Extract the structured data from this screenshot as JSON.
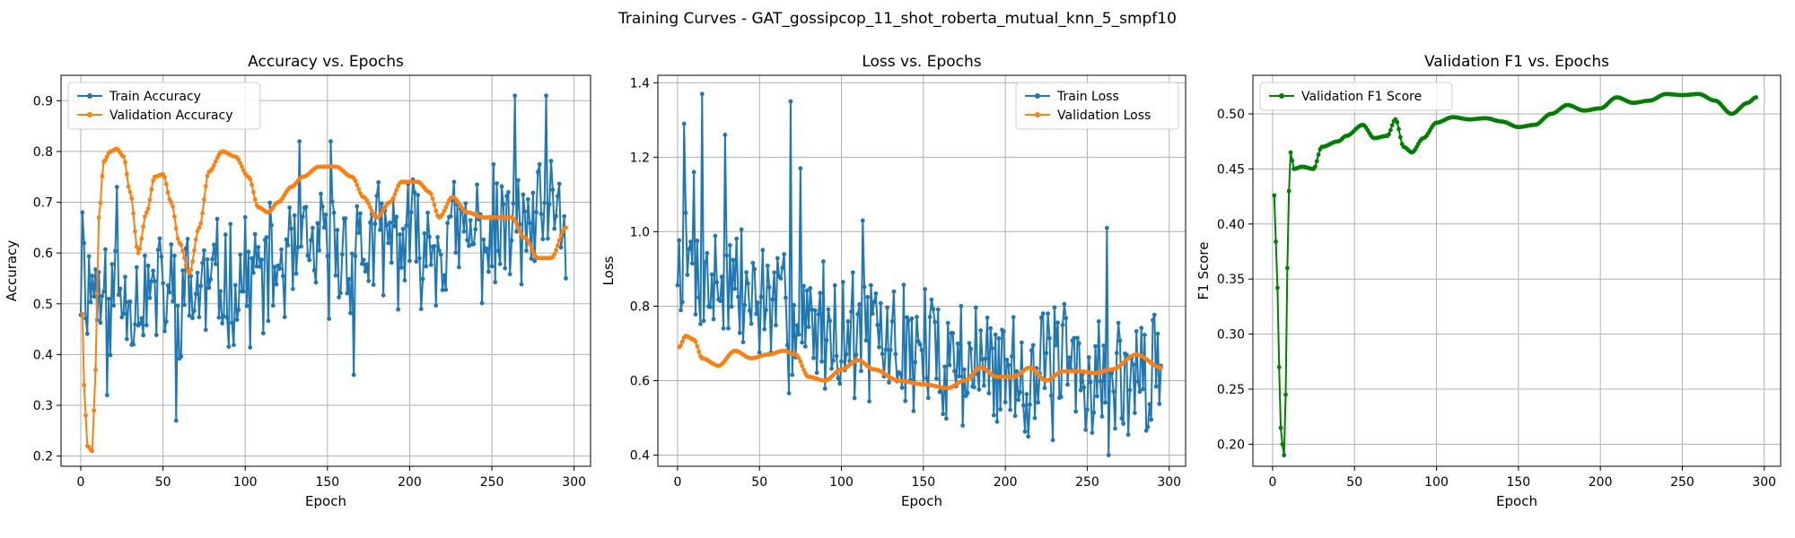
{
  "figure": {
    "suptitle": "Training Curves - GAT_gossipcop_11_shot_roberta_mutual_knn_5_smpf10"
  },
  "colors": {
    "blue": "#1f77b4",
    "orange": "#ff7f0e",
    "green": "#008000",
    "grid": "#b0b0b0"
  },
  "chart_data": [
    {
      "type": "line",
      "title": "Accuracy vs. Epochs",
      "xlabel": "Epoch",
      "ylabel": "Accuracy",
      "xlim": [
        -12,
        310
      ],
      "ylim": [
        0.18,
        0.95
      ],
      "xticks": [
        0,
        50,
        100,
        150,
        200,
        250,
        300
      ],
      "yticks": [
        0.2,
        0.3,
        0.4,
        0.5,
        0.6,
        0.7,
        0.8,
        0.9
      ],
      "grid": true,
      "legend": "upper left",
      "series": [
        {
          "name": "Train Accuracy",
          "color": "#1f77b4",
          "generator": "noise",
          "seed": 11,
          "length": 296,
          "anchors": [
            [
              0,
              0.55
            ],
            [
              20,
              0.52
            ],
            [
              60,
              0.52
            ],
            [
              100,
              0.55
            ],
            [
              150,
              0.6
            ],
            [
              200,
              0.62
            ],
            [
              295,
              0.65
            ]
          ],
          "amp": 0.11,
          "clip": [
            0.27,
            0.91
          ],
          "spikes": [
            [
              1,
              0.68
            ],
            [
              16,
              0.32
            ],
            [
              22,
              0.73
            ],
            [
              58,
              0.27
            ],
            [
              133,
              0.82
            ],
            [
              152,
              0.82
            ],
            [
              166,
              0.36
            ],
            [
              264,
              0.91
            ],
            [
              283,
              0.91
            ],
            [
              295,
              0.55
            ]
          ]
        },
        {
          "name": "Validation Accuracy",
          "color": "#ff7f0e",
          "generator": "smooth",
          "anchors": [
            [
              1,
              0.48
            ],
            [
              2,
              0.34
            ],
            [
              4,
              0.22
            ],
            [
              7,
              0.21
            ],
            [
              9,
              0.37
            ],
            [
              11,
              0.67
            ],
            [
              14,
              0.78
            ],
            [
              18,
              0.8
            ],
            [
              22,
              0.805
            ],
            [
              26,
              0.79
            ],
            [
              30,
              0.72
            ],
            [
              35,
              0.6
            ],
            [
              40,
              0.68
            ],
            [
              45,
              0.75
            ],
            [
              50,
              0.755
            ],
            [
              55,
              0.7
            ],
            [
              60,
              0.62
            ],
            [
              66,
              0.56
            ],
            [
              72,
              0.65
            ],
            [
              78,
              0.76
            ],
            [
              86,
              0.8
            ],
            [
              94,
              0.79
            ],
            [
              102,
              0.75
            ],
            [
              108,
              0.69
            ],
            [
              114,
              0.68
            ],
            [
              120,
              0.7
            ],
            [
              128,
              0.73
            ],
            [
              135,
              0.75
            ],
            [
              145,
              0.77
            ],
            [
              155,
              0.77
            ],
            [
              165,
              0.75
            ],
            [
              172,
              0.71
            ],
            [
              180,
              0.67
            ],
            [
              188,
              0.7
            ],
            [
              195,
              0.74
            ],
            [
              205,
              0.74
            ],
            [
              212,
              0.72
            ],
            [
              218,
              0.67
            ],
            [
              226,
              0.71
            ],
            [
              235,
              0.68
            ],
            [
              245,
              0.67
            ],
            [
              255,
              0.67
            ],
            [
              262,
              0.67
            ],
            [
              270,
              0.63
            ],
            [
              278,
              0.59
            ],
            [
              286,
              0.59
            ],
            [
              295,
              0.65
            ]
          ]
        }
      ]
    },
    {
      "type": "line",
      "title": "Loss vs. Epochs",
      "xlabel": "Epoch",
      "ylabel": "Loss",
      "xlim": [
        -12,
        310
      ],
      "ylim": [
        0.37,
        1.42
      ],
      "xticks": [
        0,
        50,
        100,
        150,
        200,
        250,
        300
      ],
      "yticks": [
        0.4,
        0.6,
        0.8,
        1.0,
        1.2,
        1.4
      ],
      "grid": true,
      "legend": "upper right",
      "series": [
        {
          "name": "Train Loss",
          "color": "#1f77b4",
          "generator": "noise",
          "seed": 7,
          "length": 296,
          "anchors": [
            [
              0,
              0.9
            ],
            [
              30,
              0.85
            ],
            [
              80,
              0.75
            ],
            [
              150,
              0.68
            ],
            [
              200,
              0.63
            ],
            [
              295,
              0.6
            ]
          ],
          "amp": 0.16,
          "clip": [
            0.4,
            1.37
          ],
          "spikes": [
            [
              4,
              1.29
            ],
            [
              10,
              1.16
            ],
            [
              15,
              1.37
            ],
            [
              29,
              1.26
            ],
            [
              69,
              1.35
            ],
            [
              75,
              1.17
            ],
            [
              113,
              1.03
            ],
            [
              262,
              1.01
            ],
            [
              263,
              0.4
            ],
            [
              295,
              0.64
            ]
          ]
        },
        {
          "name": "Validation Loss",
          "color": "#ff7f0e",
          "generator": "smooth",
          "anchors": [
            [
              1,
              0.69
            ],
            [
              5,
              0.72
            ],
            [
              10,
              0.71
            ],
            [
              15,
              0.66
            ],
            [
              25,
              0.64
            ],
            [
              35,
              0.68
            ],
            [
              45,
              0.66
            ],
            [
              55,
              0.67
            ],
            [
              65,
              0.68
            ],
            [
              72,
              0.67
            ],
            [
              80,
              0.61
            ],
            [
              90,
              0.6
            ],
            [
              100,
              0.63
            ],
            [
              110,
              0.655
            ],
            [
              120,
              0.63
            ],
            [
              135,
              0.6
            ],
            [
              150,
              0.59
            ],
            [
              165,
              0.58
            ],
            [
              175,
              0.6
            ],
            [
              185,
              0.635
            ],
            [
              195,
              0.61
            ],
            [
              205,
              0.61
            ],
            [
              215,
              0.635
            ],
            [
              225,
              0.6
            ],
            [
              235,
              0.625
            ],
            [
              245,
              0.625
            ],
            [
              255,
              0.62
            ],
            [
              265,
              0.63
            ],
            [
              280,
              0.67
            ],
            [
              295,
              0.635
            ]
          ]
        }
      ]
    },
    {
      "type": "line",
      "title": "Validation F1 vs. Epochs",
      "xlabel": "Epoch",
      "ylabel": "F1 Score",
      "xlim": [
        -12,
        310
      ],
      "ylim": [
        0.18,
        0.535
      ],
      "xticks": [
        0,
        50,
        100,
        150,
        200,
        250,
        300
      ],
      "yticks": [
        0.2,
        0.25,
        0.3,
        0.35,
        0.4,
        0.45,
        0.5
      ],
      "grid": true,
      "legend": "upper left",
      "series": [
        {
          "name": "Validation F1 Score",
          "color": "#008000",
          "generator": "smooth",
          "anchors": [
            [
              1,
              0.426
            ],
            [
              3,
              0.342
            ],
            [
              4,
              0.27
            ],
            [
              5,
              0.215
            ],
            [
              6,
              0.2
            ],
            [
              7,
              0.19
            ],
            [
              8,
              0.245
            ],
            [
              9,
              0.36
            ],
            [
              10,
              0.43
            ],
            [
              11,
              0.465
            ],
            [
              13,
              0.45
            ],
            [
              18,
              0.452
            ],
            [
              25,
              0.45
            ],
            [
              30,
              0.47
            ],
            [
              40,
              0.475
            ],
            [
              45,
              0.48
            ],
            [
              55,
              0.49
            ],
            [
              62,
              0.478
            ],
            [
              70,
              0.48
            ],
            [
              75,
              0.495
            ],
            [
              80,
              0.47
            ],
            [
              85,
              0.465
            ],
            [
              92,
              0.478
            ],
            [
              100,
              0.492
            ],
            [
              110,
              0.497
            ],
            [
              120,
              0.495
            ],
            [
              130,
              0.496
            ],
            [
              140,
              0.493
            ],
            [
              150,
              0.488
            ],
            [
              160,
              0.49
            ],
            [
              170,
              0.5
            ],
            [
              180,
              0.508
            ],
            [
              190,
              0.503
            ],
            [
              200,
              0.505
            ],
            [
              210,
              0.515
            ],
            [
              220,
              0.51
            ],
            [
              230,
              0.512
            ],
            [
              240,
              0.518
            ],
            [
              250,
              0.517
            ],
            [
              260,
              0.518
            ],
            [
              270,
              0.512
            ],
            [
              280,
              0.5
            ],
            [
              290,
              0.51
            ],
            [
              295,
              0.515
            ]
          ]
        }
      ]
    }
  ]
}
